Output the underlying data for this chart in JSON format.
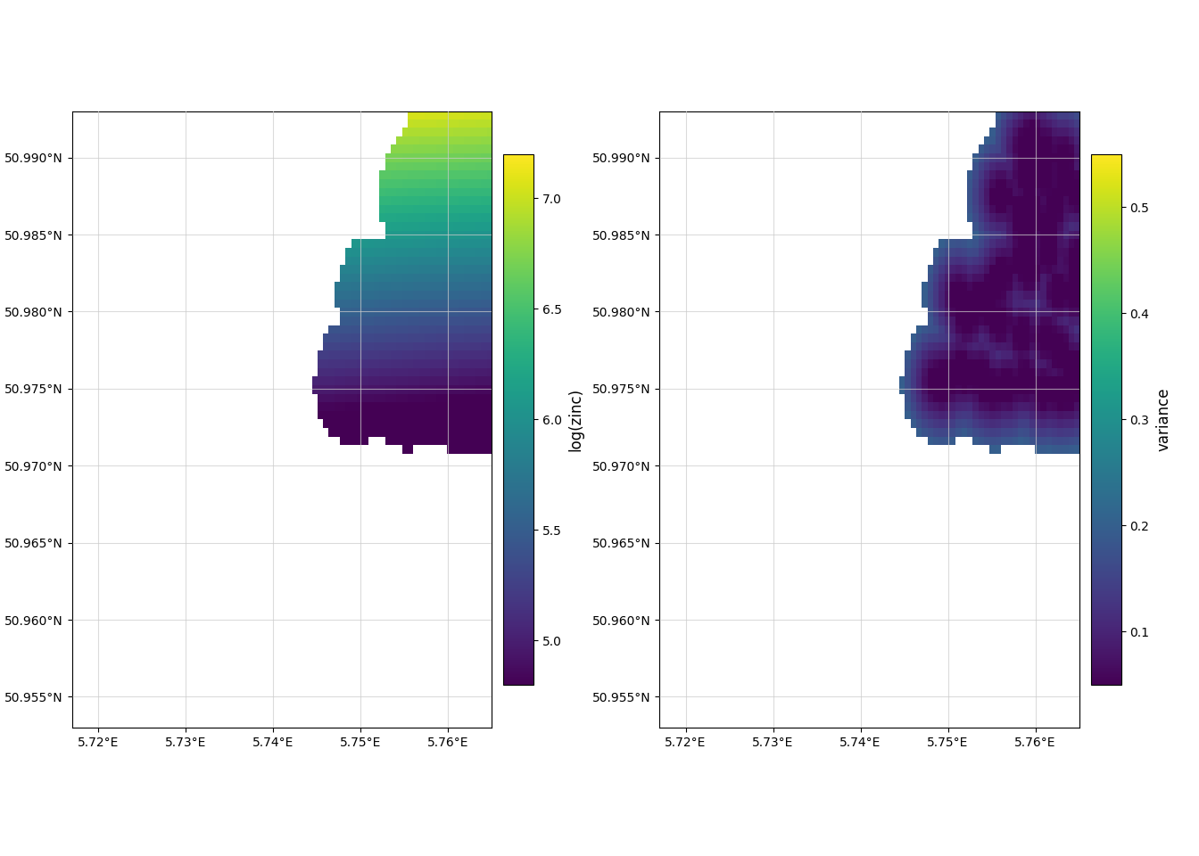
{
  "lon_min": 5.717,
  "lon_max": 5.765,
  "lat_min": 50.953,
  "lat_max": 50.993,
  "lon_ticks": [
    5.72,
    5.73,
    5.74,
    5.75,
    5.76
  ],
  "lat_ticks": [
    50.955,
    50.96,
    50.965,
    50.97,
    50.975,
    50.98,
    50.985,
    50.99
  ],
  "lon_tick_labels": [
    "5.72°E",
    "5.73°E",
    "5.74°E",
    "5.75°E",
    "5.76°E"
  ],
  "lat_tick_labels": [
    "50.955°N",
    "50.960°N",
    "50.965°N",
    "50.970°N",
    "50.975°N",
    "50.980°N",
    "50.985°N",
    "50.990°N"
  ],
  "pred_colormap": "viridis",
  "var_colormap": "viridis",
  "pred_label": "log(zinc)",
  "var_label": "variance",
  "pred_vmin": 4.8,
  "pred_vmax": 7.2,
  "var_vmin": 0.05,
  "var_vmax": 0.55,
  "pred_ticks": [
    5.0,
    5.5,
    6.0,
    6.5,
    7.0
  ],
  "var_ticks": [
    0.1,
    0.2,
    0.3,
    0.4,
    0.5
  ],
  "background_color": "#ffffff",
  "grid_color": "#cccccc",
  "grid_linewidth": 0.8
}
